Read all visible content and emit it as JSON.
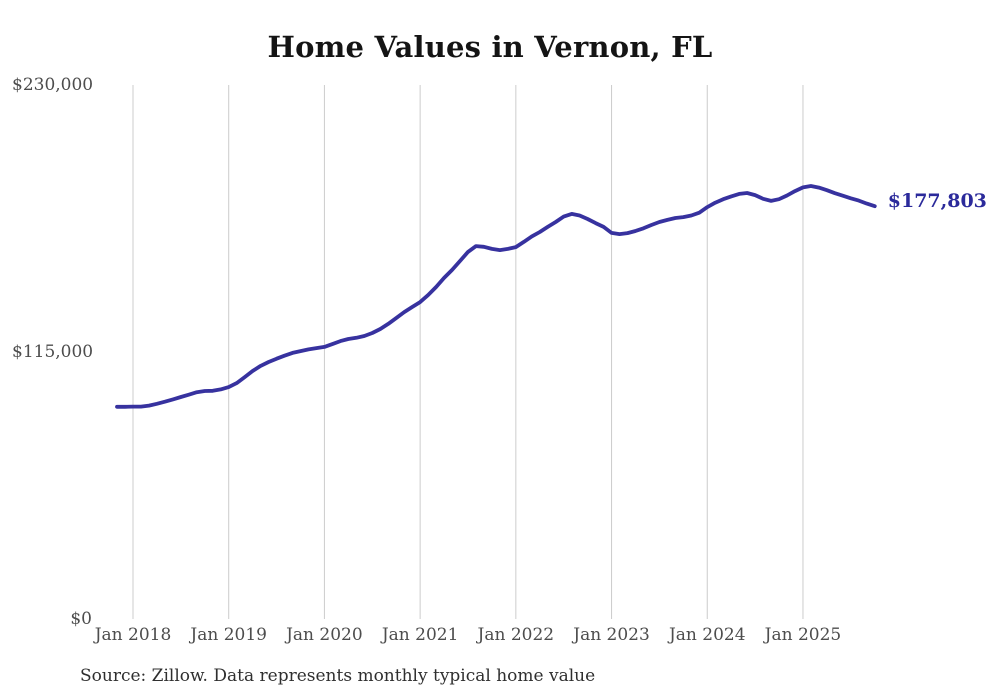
{
  "title": "Home Values in Vernon, FL",
  "source_note": "Source: Zillow. Data represents monthly typical home value",
  "current_value_label": "$177,803",
  "colors": {
    "line": "#37329f",
    "current_value": "#2b2a9b",
    "grid": "#cccccc",
    "axis_text": "#4d4d4d",
    "title_text": "#141414",
    "source_text": "#2f2f2f",
    "background": "#ffffff"
  },
  "chart_data": {
    "type": "line",
    "title": "Home Values in Vernon, FL",
    "xlabel": "",
    "ylabel": "",
    "ylim": [
      0,
      230000
    ],
    "grid": "vertical-only",
    "legend_position": "none",
    "y_ticks": [
      {
        "value": 230000,
        "label": "$230,000"
      },
      {
        "value": 115000,
        "label": "$115,000"
      },
      {
        "value": 0,
        "label": "$0"
      }
    ],
    "x_ticks": [
      {
        "month": "2018-01",
        "label": "Jan 2018"
      },
      {
        "month": "2019-01",
        "label": "Jan 2019"
      },
      {
        "month": "2020-01",
        "label": "Jan 2020"
      },
      {
        "month": "2021-01",
        "label": "Jan 2021"
      },
      {
        "month": "2022-01",
        "label": "Jan 2022"
      },
      {
        "month": "2023-01",
        "label": "Jan 2023"
      },
      {
        "month": "2024-01",
        "label": "Jan 2024"
      },
      {
        "month": "2025-01",
        "label": "Jan 2025"
      }
    ],
    "series": [
      {
        "name": "Monthly typical home value",
        "unit": "USD",
        "last_point_label": "$177,803",
        "x": [
          "2017-11",
          "2017-12",
          "2018-01",
          "2018-02",
          "2018-03",
          "2018-04",
          "2018-05",
          "2018-06",
          "2018-07",
          "2018-08",
          "2018-09",
          "2018-10",
          "2018-11",
          "2018-12",
          "2019-01",
          "2019-02",
          "2019-03",
          "2019-04",
          "2019-05",
          "2019-06",
          "2019-07",
          "2019-08",
          "2019-09",
          "2019-10",
          "2019-11",
          "2019-12",
          "2020-01",
          "2020-02",
          "2020-03",
          "2020-04",
          "2020-05",
          "2020-06",
          "2020-07",
          "2020-08",
          "2020-09",
          "2020-10",
          "2020-11",
          "2020-12",
          "2021-01",
          "2021-02",
          "2021-03",
          "2021-04",
          "2021-05",
          "2021-06",
          "2021-07",
          "2021-08",
          "2021-09",
          "2021-10",
          "2021-11",
          "2021-12",
          "2022-01",
          "2022-02",
          "2022-03",
          "2022-04",
          "2022-05",
          "2022-06",
          "2022-07",
          "2022-08",
          "2022-09",
          "2022-10",
          "2022-11",
          "2022-12",
          "2023-01",
          "2023-02",
          "2023-03",
          "2023-04",
          "2023-05",
          "2023-06",
          "2023-07",
          "2023-08",
          "2023-09",
          "2023-10",
          "2023-11",
          "2023-12",
          "2024-01",
          "2024-02",
          "2024-03",
          "2024-04",
          "2024-05",
          "2024-06",
          "2024-07",
          "2024-08",
          "2024-09",
          "2024-10",
          "2024-11",
          "2024-12",
          "2025-01",
          "2025-02",
          "2025-03",
          "2025-04",
          "2025-05",
          "2025-06",
          "2025-07",
          "2025-08",
          "2025-09",
          "2025-10"
        ],
        "values": [
          91400,
          91400,
          91500,
          91500,
          91900,
          92700,
          93600,
          94600,
          95600,
          96600,
          97700,
          98200,
          98300,
          98900,
          99900,
          101600,
          104200,
          106800,
          109000,
          110700,
          112100,
          113400,
          114600,
          115400,
          116100,
          116700,
          117200,
          118400,
          119700,
          120600,
          121100,
          121900,
          123200,
          124900,
          127100,
          129600,
          132200,
          134400,
          136500,
          139500,
          143000,
          146900,
          150300,
          154200,
          158100,
          160600,
          160300,
          159400,
          158900,
          159400,
          160200,
          162400,
          164800,
          166700,
          168900,
          171000,
          173300,
          174500,
          173800,
          172300,
          170500,
          168900,
          166300,
          165800,
          166200,
          167100,
          168300,
          169700,
          171000,
          171900,
          172700,
          173100,
          173800,
          175000,
          177400,
          179300,
          180800,
          182000,
          183100,
          183500,
          182600,
          181000,
          180100,
          180800,
          182400,
          184300,
          185900,
          186500,
          185800,
          184700,
          183400,
          182300,
          181200,
          180200,
          178900,
          177803
        ]
      }
    ]
  }
}
